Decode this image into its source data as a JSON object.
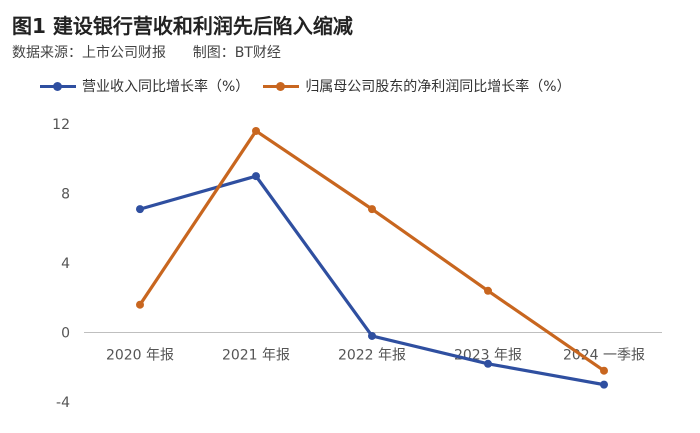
{
  "header": {
    "title": "图1 建设银行营收和利润先后陷入缩减",
    "source": "数据来源：上市公司财报      制图：BT财经"
  },
  "legend": {
    "items": [
      {
        "label": "营业收入同比增长率（%）",
        "color": "#2f4fa0"
      },
      {
        "label": "归属母公司股东的净利润同比增长率（%）",
        "color": "#c8661f"
      }
    ]
  },
  "chart_data": {
    "type": "line",
    "categories": [
      "2020 年报",
      "2021 年报",
      "2022 年报",
      "2023 年报",
      "2024 一季报"
    ],
    "series": [
      {
        "name": "营业收入同比增长率（%）",
        "color": "#2f4fa0",
        "values": [
          7.1,
          9.0,
          -0.2,
          -1.8,
          -3.0
        ]
      },
      {
        "name": "归属母公司股东的净利润同比增长率（%）",
        "color": "#c8661f",
        "values": [
          1.6,
          11.6,
          7.1,
          2.4,
          -2.2
        ]
      }
    ],
    "ylim": [
      -4,
      12
    ],
    "yticks": [
      -4,
      0,
      4,
      8,
      12
    ],
    "ytick_labels": [
      "-4",
      "0",
      "4",
      "8",
      "12"
    ],
    "grid": false,
    "legend_position": "top",
    "xlabel": "",
    "ylabel": ""
  }
}
